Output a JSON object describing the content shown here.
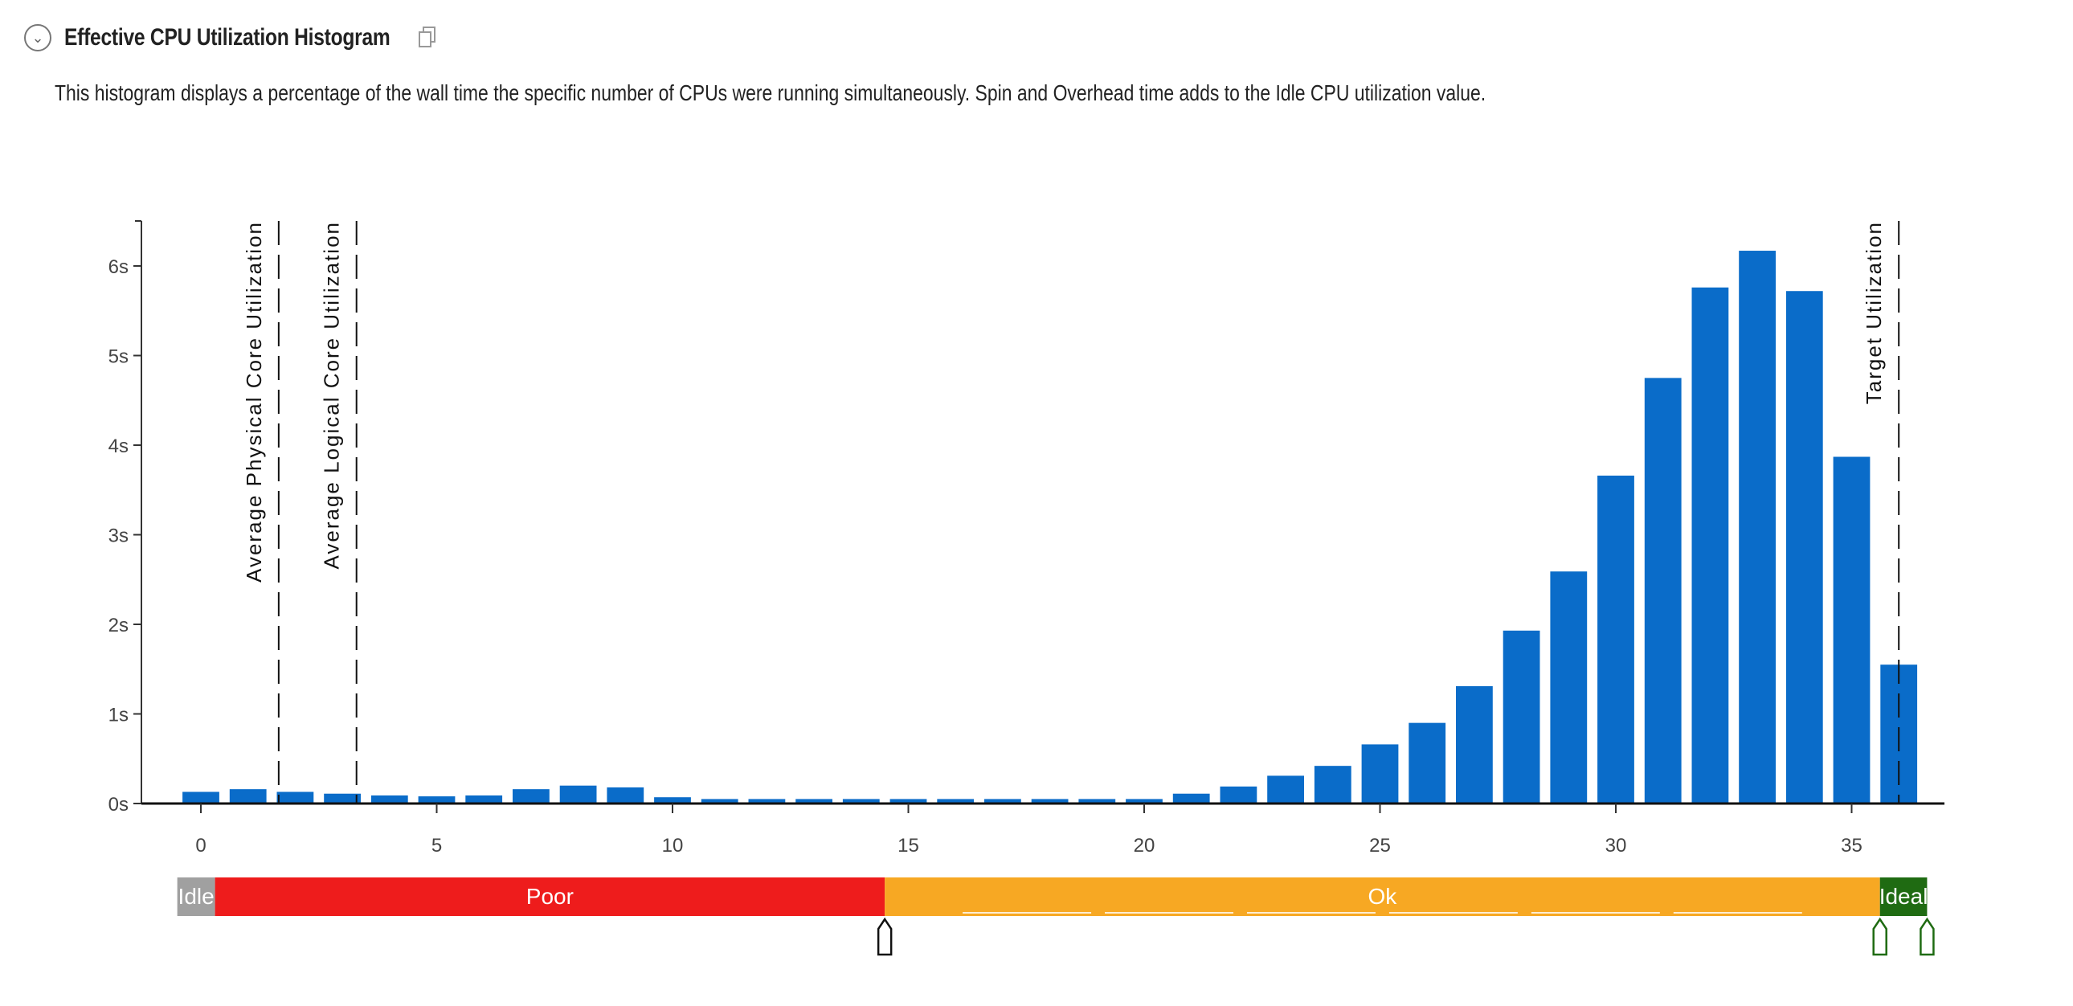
{
  "header": {
    "title": "Effective CPU Utilization Histogram",
    "description": "This histogram displays a percentage of the wall time the specific number of CPUs were running simultaneously. Spin and Overhead time adds to the Idle CPU utilization value.",
    "collapse_icon": "chevron-down-circle-icon",
    "copy_icon": "copy-icon"
  },
  "chart_data": {
    "type": "bar",
    "x": [
      0,
      1,
      2,
      3,
      4,
      5,
      6,
      7,
      8,
      9,
      10,
      11,
      12,
      13,
      14,
      15,
      16,
      17,
      18,
      19,
      20,
      21,
      22,
      23,
      24,
      25,
      26,
      27,
      28,
      29,
      30,
      31,
      32,
      33,
      34,
      35,
      36
    ],
    "values": [
      0.13,
      0.16,
      0.13,
      0.11,
      0.09,
      0.08,
      0.09,
      0.16,
      0.2,
      0.18,
      0.07,
      0.05,
      0.05,
      0.05,
      0.05,
      0.05,
      0.05,
      0.05,
      0.05,
      0.05,
      0.05,
      0.11,
      0.19,
      0.31,
      0.42,
      0.66,
      0.9,
      1.31,
      1.93,
      2.59,
      3.66,
      4.75,
      5.76,
      6.17,
      5.72,
      3.87,
      1.55
    ],
    "xticks": [
      0,
      5,
      10,
      15,
      20,
      25,
      30,
      35
    ],
    "xtick_labels": [
      "0",
      "5",
      "10",
      "15",
      "20",
      "25",
      "30",
      "35"
    ],
    "yticks": [
      0,
      1,
      2,
      3,
      4,
      5,
      6
    ],
    "ytick_labels": [
      "0s",
      "1s",
      "2s",
      "3s",
      "4s",
      "5s",
      "6s"
    ],
    "ylim": [
      0,
      6.5
    ],
    "xlim": [
      -0.5,
      37
    ],
    "bar_color": "#0a6cc9",
    "reference_lines": [
      {
        "label": "Average Physical Core Utilization",
        "x": 1.65
      },
      {
        "label": "Average Logical Core Utilization",
        "x": 3.3
      },
      {
        "label": "Target Utilization",
        "x": 36
      }
    ],
    "utilization_bands": [
      {
        "label": "Idle",
        "from": -0.5,
        "to": 0.3,
        "color": "#a0a0a0"
      },
      {
        "label": "Poor",
        "from": 0.3,
        "to": 14.5,
        "color": "#ee1c1c"
      },
      {
        "label": "Ok",
        "from": 14.5,
        "to": 35.6,
        "color": "#f7a823"
      },
      {
        "label": "Ideal",
        "from": 35.6,
        "to": 36.6,
        "color": "#1f6b12"
      }
    ],
    "threshold_markers": [
      {
        "x": 14.5,
        "color": "#111111"
      },
      {
        "x": 35.6,
        "color": "#1f6b12"
      },
      {
        "x": 36.6,
        "color": "#1f6b12"
      }
    ]
  }
}
